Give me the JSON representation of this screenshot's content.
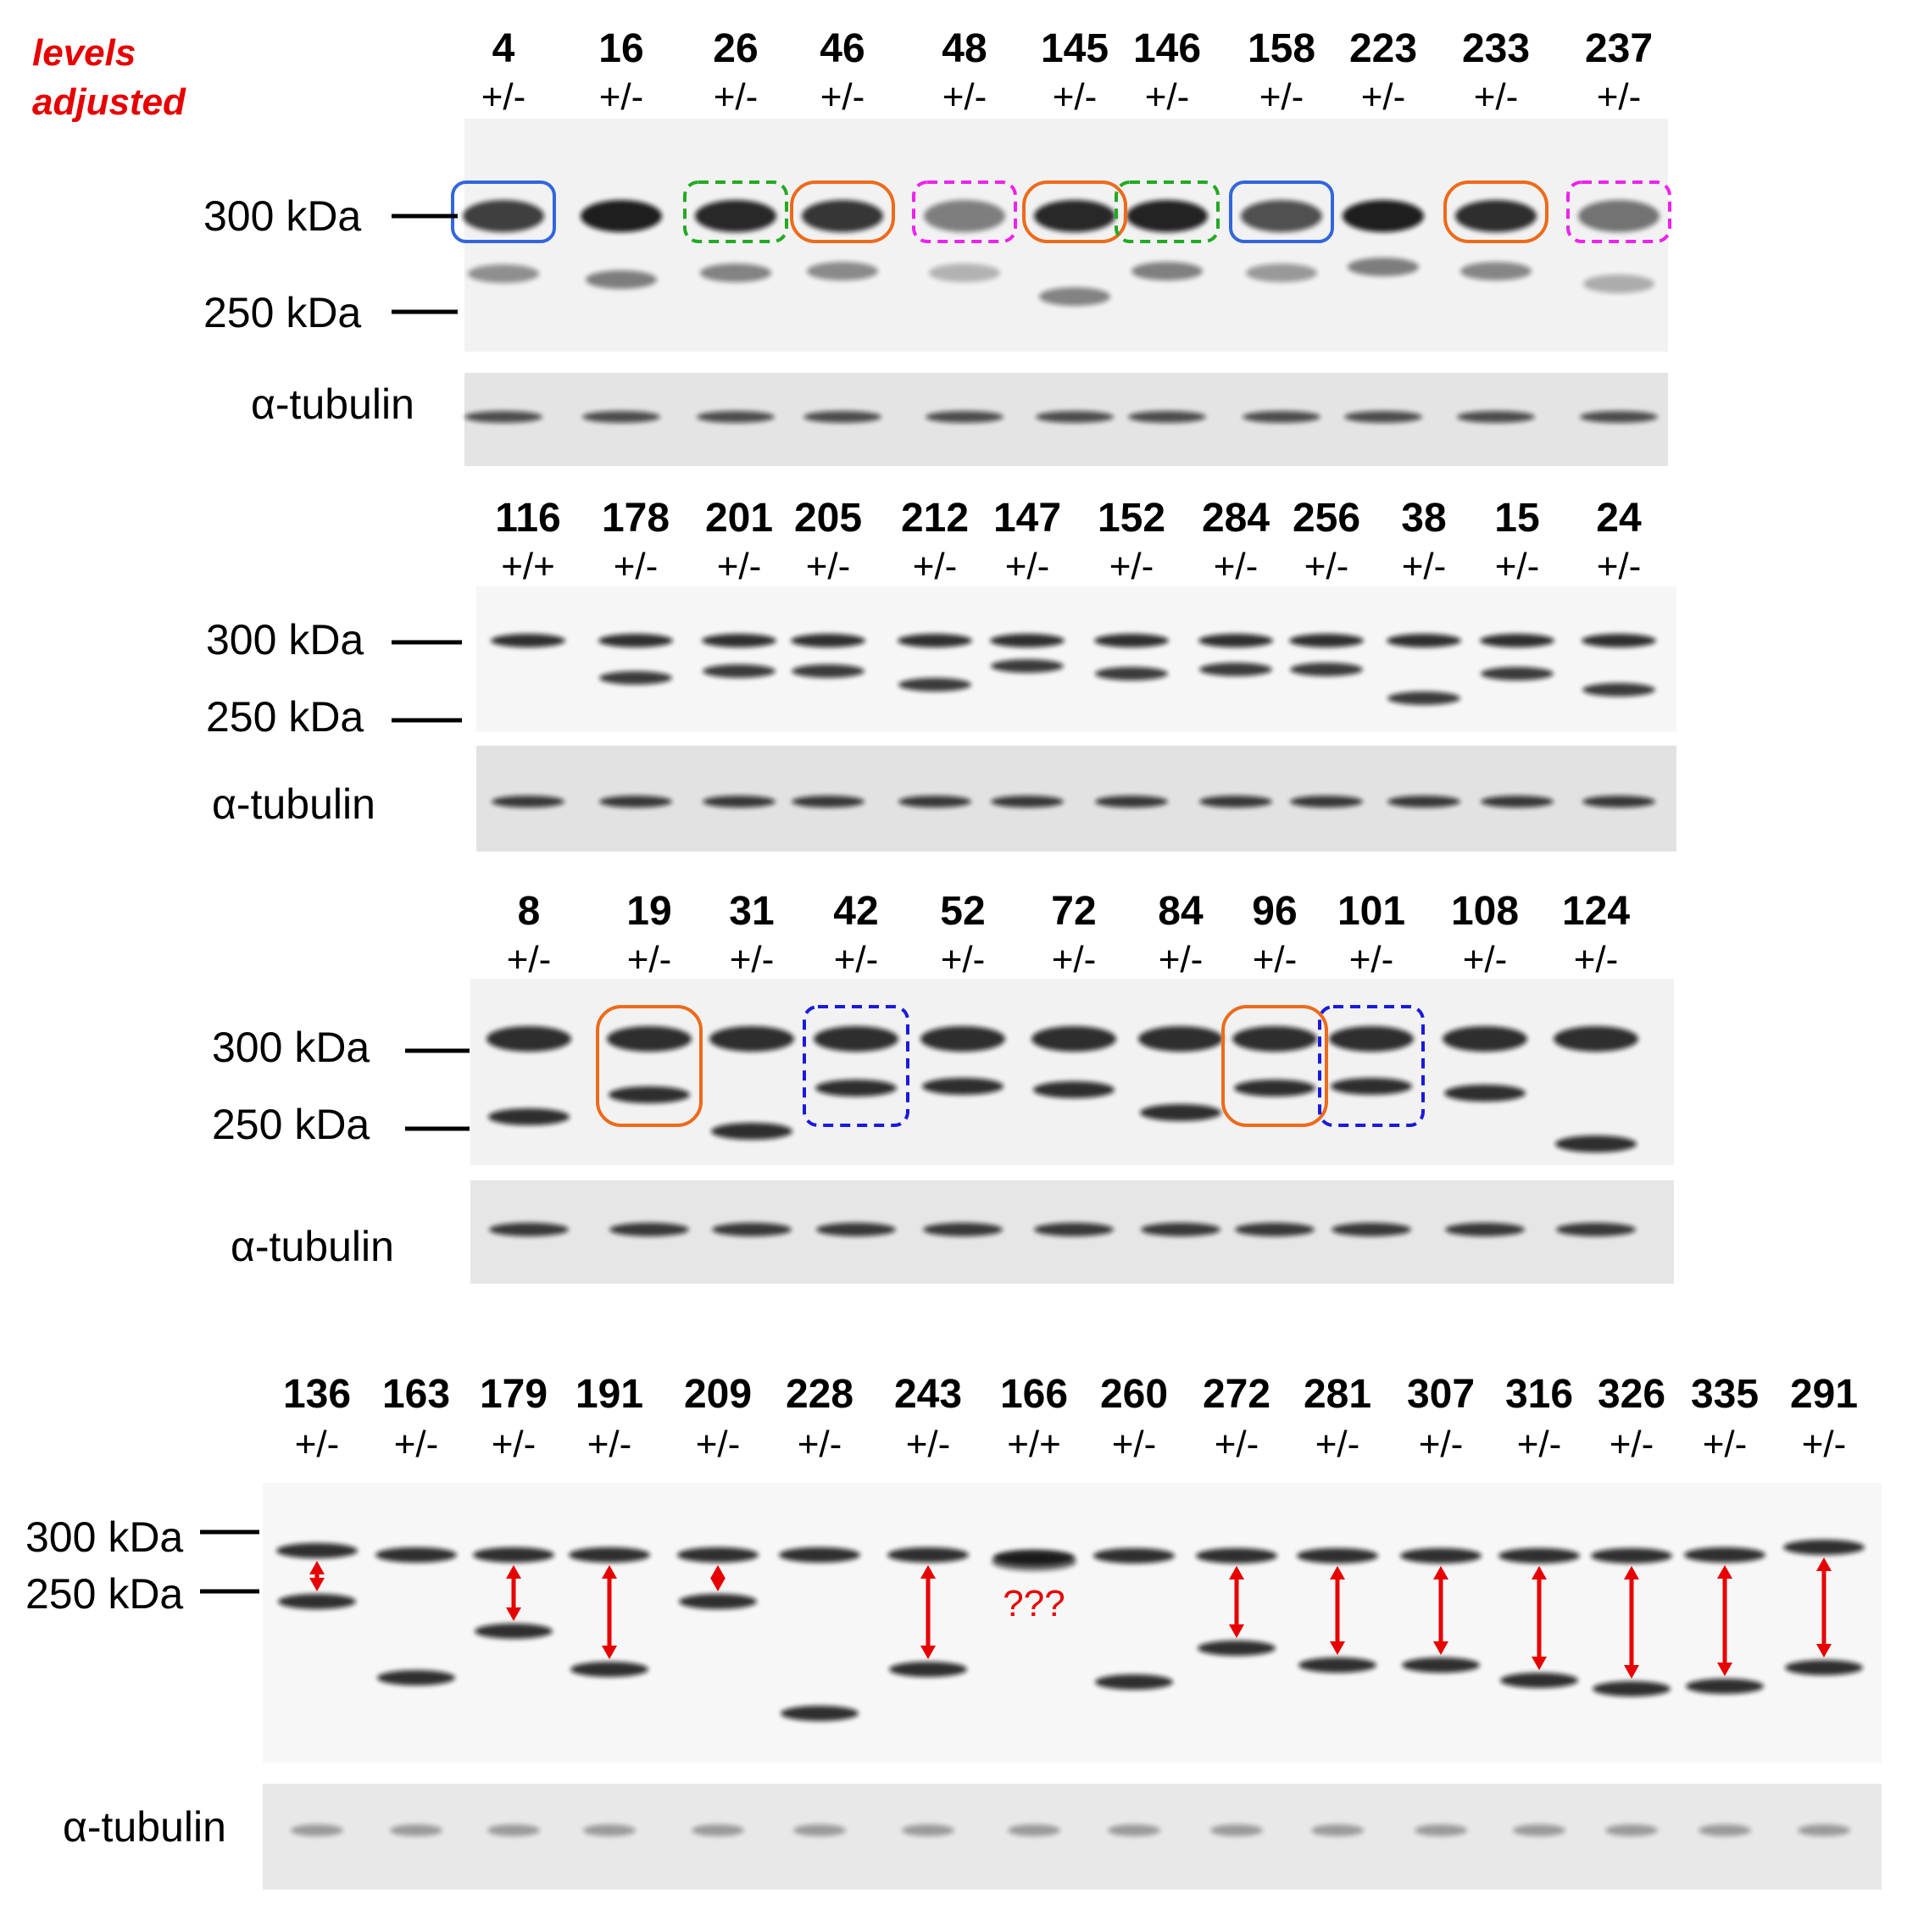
{
  "note": {
    "line1": "levels",
    "line2": "adjusted"
  },
  "marker_labels": {
    "mw300": "300 kDa",
    "mw250": "250 kDa"
  },
  "tubulin_label": "α-tubulin",
  "question": "???",
  "colors": {
    "blue_solid": "#3366dd",
    "orange": "#ee6a1a",
    "green_dashed": "#22aa22",
    "magenta_dashed": "#ee22ee",
    "blue_dashed": "#1a1add",
    "red_arrow": "#e60000"
  },
  "panels": [
    {
      "lanes": [
        {
          "id": "4",
          "genotype": "+/-",
          "highlight": "blue_solid"
        },
        {
          "id": "16",
          "genotype": "+/-"
        },
        {
          "id": "26",
          "genotype": "+/-",
          "highlight": "green_dashed"
        },
        {
          "id": "46",
          "genotype": "+/-",
          "highlight": "orange"
        },
        {
          "id": "48",
          "genotype": "+/-",
          "highlight": "magenta_dashed"
        },
        {
          "id": "145",
          "genotype": "+/-",
          "highlight": "orange"
        },
        {
          "id": "146",
          "genotype": "+/-",
          "highlight": "green_dashed"
        },
        {
          "id": "158",
          "genotype": "+/-",
          "highlight": "blue_solid"
        },
        {
          "id": "223",
          "genotype": "+/-"
        },
        {
          "id": "233",
          "genotype": "+/-",
          "highlight": "orange"
        },
        {
          "id": "237",
          "genotype": "+/-",
          "highlight": "magenta_dashed"
        }
      ]
    },
    {
      "lanes": [
        {
          "id": "116",
          "genotype": "+/+"
        },
        {
          "id": "178",
          "genotype": "+/-"
        },
        {
          "id": "201",
          "genotype": "+/-"
        },
        {
          "id": "205",
          "genotype": "+/-"
        },
        {
          "id": "212",
          "genotype": "+/-"
        },
        {
          "id": "147",
          "genotype": "+/-"
        },
        {
          "id": "152",
          "genotype": "+/-"
        },
        {
          "id": "284",
          "genotype": "+/-"
        },
        {
          "id": "256",
          "genotype": "+/-"
        },
        {
          "id": "38",
          "genotype": "+/-"
        },
        {
          "id": "15",
          "genotype": "+/-"
        },
        {
          "id": "24",
          "genotype": "+/-"
        }
      ]
    },
    {
      "lanes": [
        {
          "id": "8",
          "genotype": "+/-"
        },
        {
          "id": "19",
          "genotype": "+/-",
          "highlight": "orange"
        },
        {
          "id": "31",
          "genotype": "+/-"
        },
        {
          "id": "42",
          "genotype": "+/-",
          "highlight": "blue_dashed"
        },
        {
          "id": "52",
          "genotype": "+/-"
        },
        {
          "id": "72",
          "genotype": "+/-"
        },
        {
          "id": "84",
          "genotype": "+/-"
        },
        {
          "id": "96",
          "genotype": "+/-",
          "highlight": "orange"
        },
        {
          "id": "101",
          "genotype": "+/-",
          "highlight": "blue_dashed"
        },
        {
          "id": "108",
          "genotype": "+/-"
        },
        {
          "id": "124",
          "genotype": "+/-"
        }
      ]
    },
    {
      "lanes": [
        {
          "id": "136",
          "genotype": "+/-"
        },
        {
          "id": "163",
          "genotype": "+/-"
        },
        {
          "id": "179",
          "genotype": "+/-"
        },
        {
          "id": "191",
          "genotype": "+/-"
        },
        {
          "id": "209",
          "genotype": "+/-"
        },
        {
          "id": "228",
          "genotype": "+/-"
        },
        {
          "id": "243",
          "genotype": "+/-"
        },
        {
          "id": "166",
          "genotype": "+/+"
        },
        {
          "id": "260",
          "genotype": "+/-"
        },
        {
          "id": "272",
          "genotype": "+/-"
        },
        {
          "id": "281",
          "genotype": "+/-"
        },
        {
          "id": "307",
          "genotype": "+/-"
        },
        {
          "id": "316",
          "genotype": "+/-"
        },
        {
          "id": "326",
          "genotype": "+/-"
        },
        {
          "id": "335",
          "genotype": "+/-"
        },
        {
          "id": "291",
          "genotype": "+/-"
        }
      ]
    }
  ]
}
